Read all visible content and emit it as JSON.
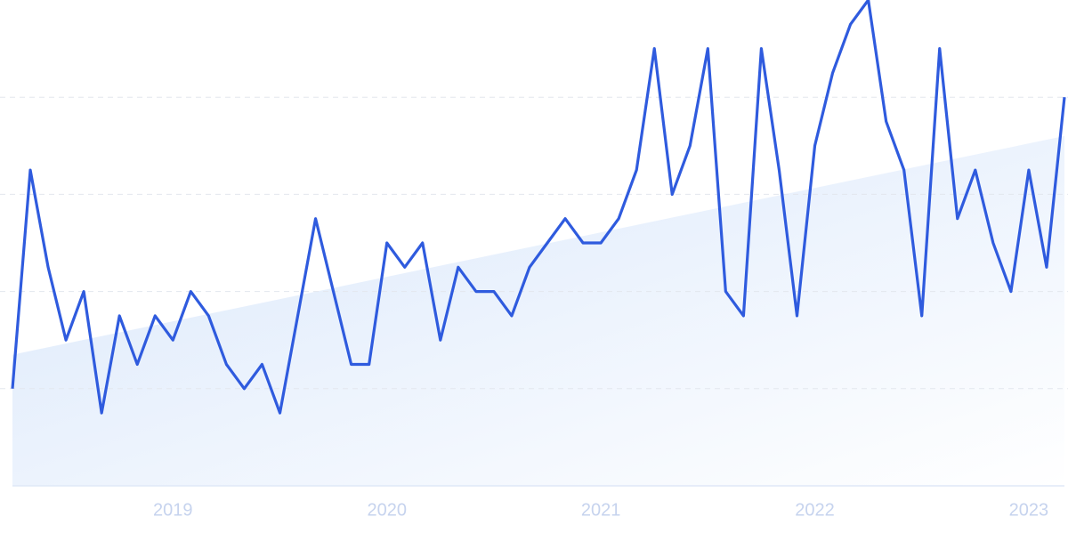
{
  "chart_data": {
    "type": "line",
    "categories": [
      null,
      null,
      null,
      null,
      null,
      null,
      null,
      null,
      null,
      "2019",
      null,
      null,
      null,
      null,
      null,
      null,
      null,
      null,
      null,
      null,
      null,
      "2020",
      null,
      null,
      null,
      null,
      null,
      null,
      null,
      null,
      null,
      null,
      null,
      "2021",
      null,
      null,
      null,
      null,
      null,
      null,
      null,
      null,
      null,
      null,
      null,
      "2022",
      null,
      null,
      null,
      null,
      null,
      null,
      null,
      null,
      null,
      null,
      null,
      "2023",
      null,
      null
    ],
    "values": [
      20,
      65,
      45,
      30,
      40,
      15,
      35,
      25,
      35,
      30,
      40,
      35,
      25,
      20,
      25,
      15,
      35,
      55,
      40,
      25,
      25,
      50,
      45,
      50,
      30,
      45,
      40,
      40,
      35,
      45,
      50,
      55,
      50,
      50,
      55,
      65,
      90,
      60,
      70,
      90,
      40,
      35,
      90,
      65,
      35,
      70,
      85,
      95,
      100,
      75,
      65,
      35,
      90,
      55,
      65,
      50,
      40,
      65,
      45,
      80
    ],
    "color": "#2f5bde",
    "trend": [
      27,
      72
    ],
    "ylim": [
      0,
      100
    ],
    "yticks": [
      20,
      40,
      60,
      80
    ],
    "grid": true
  }
}
